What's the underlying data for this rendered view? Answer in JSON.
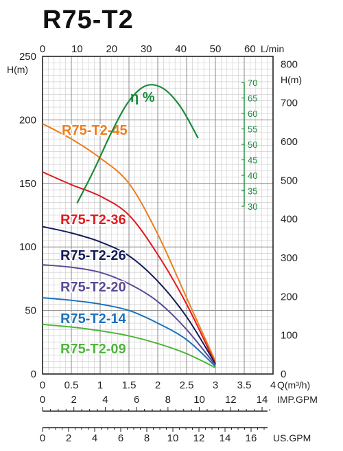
{
  "chart_data": {
    "type": "line",
    "title": "R75-T2",
    "x_axis_bottom": {
      "label": "Q(m³/h)",
      "min": 0,
      "max": 4,
      "ticks": [
        "0",
        "0.5",
        "1",
        "1.5",
        "2",
        "2.5",
        "3",
        "3.5",
        "4"
      ]
    },
    "x_axis_top": {
      "label": "L/min",
      "ticks": [
        "0",
        "10",
        "20",
        "30",
        "40",
        "50",
        "60"
      ]
    },
    "y_axis_left": {
      "label": "H(m)",
      "min": 0,
      "max": 250,
      "ticks": [
        "0",
        "50",
        "100",
        "150",
        "200",
        "250"
      ]
    },
    "y_axis_right": {
      "label": "H(m)",
      "ticks": [
        "0",
        "100",
        "200",
        "300",
        "400",
        "500",
        "600",
        "700",
        "800"
      ]
    },
    "efficiency_axis": {
      "label": "η %",
      "ticks": [
        "30",
        "35",
        "40",
        "45",
        "50",
        "55",
        "60",
        "65",
        "70"
      ]
    },
    "imp_gpm_axis": {
      "label": "IMP.GPM",
      "ticks": [
        "0",
        "2",
        "4",
        "6",
        "8",
        "10",
        "12",
        "14"
      ]
    },
    "us_gpm_axis": {
      "label": "US.GPM",
      "ticks": [
        "0",
        "2",
        "4",
        "6",
        "8",
        "10",
        "12",
        "14",
        "16"
      ]
    },
    "grid": true,
    "series": [
      {
        "name": "R75-T2-45",
        "color": "#ee7d1a",
        "x": [
          0,
          0.5,
          1.0,
          1.5,
          2.0,
          2.5,
          3.0
        ],
        "y": [
          197,
          185,
          170,
          150,
          110,
          60,
          10
        ]
      },
      {
        "name": "R75-T2-36",
        "color": "#e11a1f",
        "x": [
          0,
          0.5,
          1.0,
          1.5,
          2.0,
          2.5,
          3.0
        ],
        "y": [
          159,
          149,
          140,
          125,
          94,
          55,
          8
        ]
      },
      {
        "name": "R75-T2-26",
        "color": "#141c5a",
        "x": [
          0,
          0.5,
          1.0,
          1.5,
          2.0,
          2.5,
          3.0
        ],
        "y": [
          116,
          111,
          104,
          93,
          73,
          45,
          8
        ]
      },
      {
        "name": "R75-T2-20",
        "color": "#5b4996",
        "x": [
          0,
          0.5,
          1.0,
          1.5,
          2.0,
          2.5,
          3.0
        ],
        "y": [
          86,
          84,
          80,
          71,
          57,
          35,
          7
        ]
      },
      {
        "name": "R75-T2-14",
        "color": "#1a72bb",
        "x": [
          0,
          0.5,
          1.0,
          1.5,
          2.0,
          2.5,
          3.0
        ],
        "y": [
          60,
          58,
          55,
          50,
          40,
          27,
          6
        ]
      },
      {
        "name": "R75-T2-09",
        "color": "#4fb53b",
        "x": [
          0,
          0.5,
          1.0,
          1.5,
          2.0,
          2.5,
          3.0
        ],
        "y": [
          39,
          37,
          34,
          30,
          24,
          16,
          5
        ]
      }
    ],
    "efficiency_curve": {
      "name": "η %",
      "color": "#1a8a3a",
      "x": [
        0.6,
        0.9,
        1.2,
        1.5,
        1.8,
        2.1,
        2.4,
        2.7
      ],
      "y": [
        31,
        42,
        54,
        64,
        69,
        68,
        62,
        52
      ]
    }
  }
}
